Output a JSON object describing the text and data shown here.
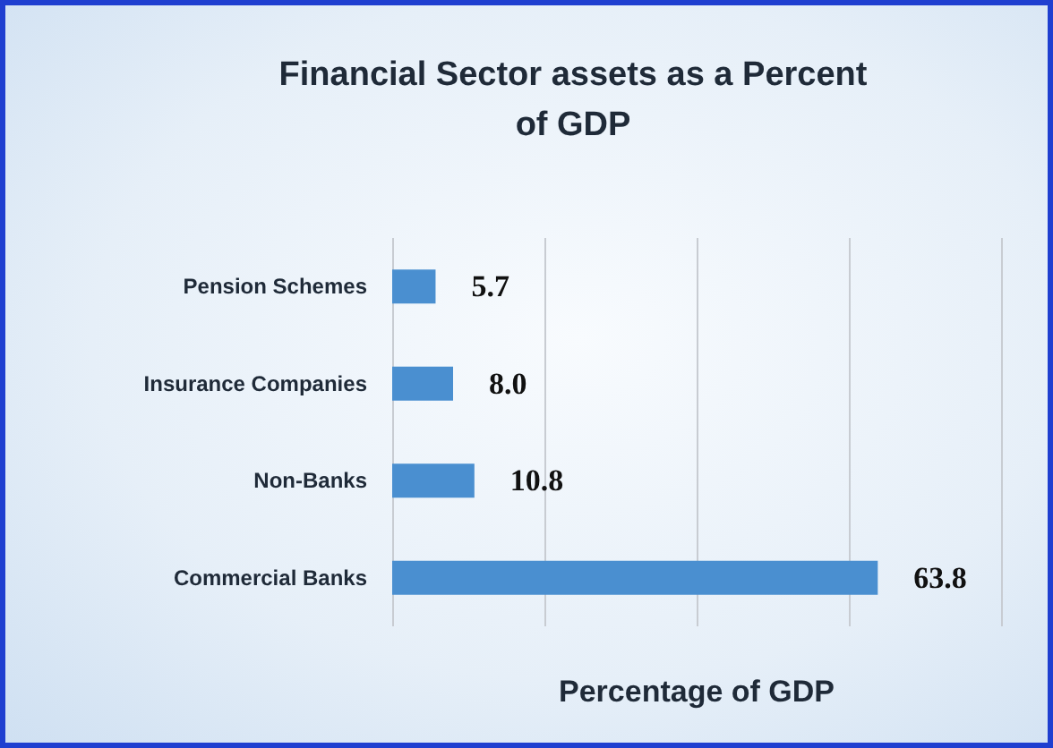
{
  "chart_data": {
    "type": "bar",
    "orientation": "horizontal",
    "title": "Financial Sector assets as a Percent\nof GDP",
    "xlabel": "Percentage of GDP",
    "categories": [
      "Pension Schemes",
      "Insurance Companies",
      "Non-Banks",
      "Commercial Banks"
    ],
    "values": [
      5.7,
      8.0,
      10.8,
      63.8
    ],
    "color": "#4a8fd0",
    "xlim": [
      0,
      80
    ],
    "xticks": [
      {
        "value": 0,
        "label": null
      },
      {
        "value": 20,
        "label": null
      },
      {
        "value": 40,
        "label": null
      },
      {
        "value": 60,
        "label": null
      },
      {
        "value": 80,
        "label": null
      }
    ],
    "value_labels": [
      "5.7",
      "8.0",
      "10.8",
      "63.8"
    ],
    "tick_labels": "y",
    "grid": "x"
  }
}
